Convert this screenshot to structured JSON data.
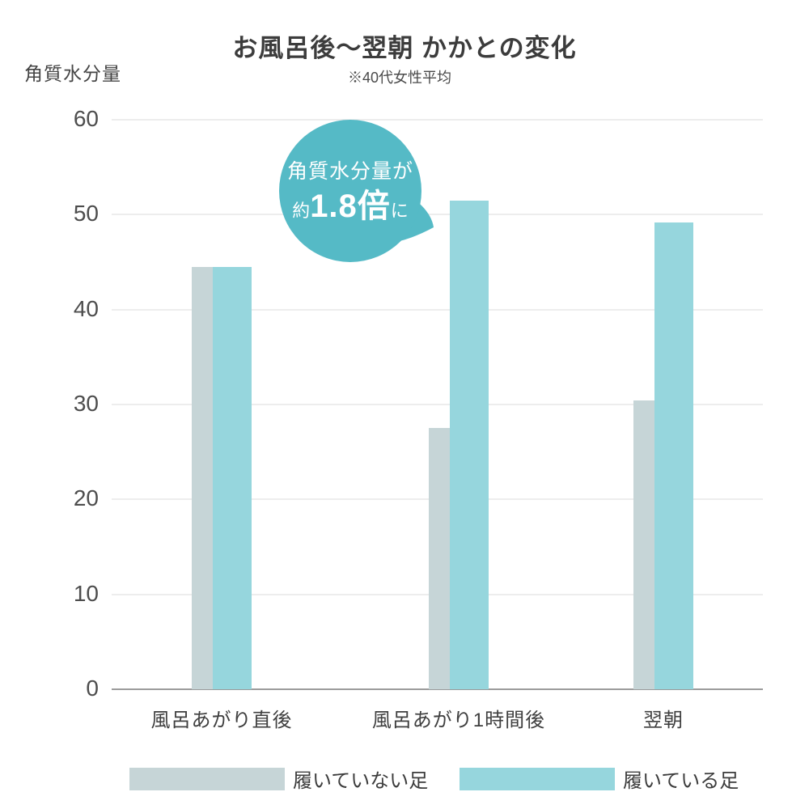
{
  "title": "お風呂後～翌朝 かかとの変化",
  "subtitle": "※40代女性平均",
  "y_axis_label": "角質水分量",
  "callout": {
    "line1": "角質水分量が",
    "line2_prefix": "約",
    "line2_value": "1.8倍",
    "line2_suffix": "に",
    "color": "#55bac6",
    "text_color": "#ffffff"
  },
  "chart_data": {
    "type": "bar",
    "categories": [
      "風呂あがり直後",
      "風呂あがり1時間後",
      "翌朝"
    ],
    "series": [
      {
        "name": "履いていない足",
        "color": "#c6d5d7",
        "values": [
          44.5,
          27.5,
          30.4
        ]
      },
      {
        "name": "履いている足",
        "color": "#96d6dd",
        "values": [
          44.5,
          51.5,
          49.2
        ]
      }
    ],
    "ylim": [
      0,
      60
    ],
    "yticks": [
      0,
      10,
      20,
      30,
      40,
      50,
      60
    ],
    "grid": "horizontal",
    "legend_position": "bottom"
  }
}
